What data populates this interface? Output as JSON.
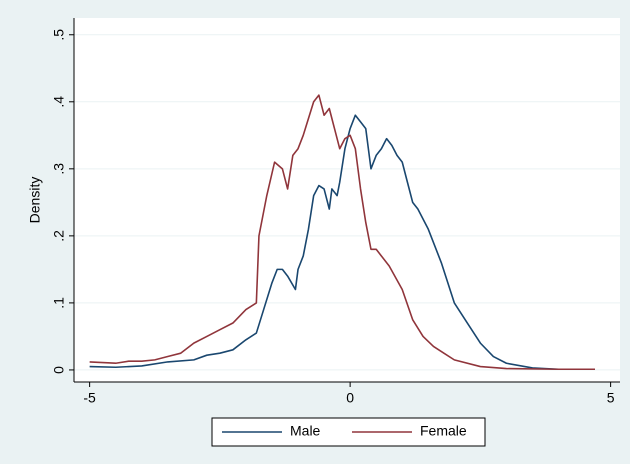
{
  "chart_data": {
    "type": "line",
    "ylabel": "Density",
    "xlim": [
      -5.3,
      5.18
    ],
    "xticks": [
      -5,
      0,
      5
    ],
    "ylim": [
      -0.018,
      0.525
    ],
    "yticks": [
      0,
      {
        "value": 0.1,
        "label": ".1"
      },
      {
        "value": 0.2,
        "label": ".2"
      },
      {
        "value": 0.3,
        "label": ".3"
      },
      {
        "value": 0.4,
        "label": ".4"
      },
      {
        "value": 0.5,
        "label": ".5"
      }
    ],
    "grid": true,
    "legend": "bottom",
    "series": [
      {
        "name": "Male",
        "color": "#1a476f",
        "x": [
          -5,
          -4.5,
          -4,
          -3.5,
          -3,
          -2.75,
          -2.5,
          -2.25,
          -2,
          -1.8,
          -1.7,
          -1.5,
          -1.4,
          -1.3,
          -1.2,
          -1.05,
          -1,
          -0.9,
          -0.8,
          -0.7,
          -0.6,
          -0.5,
          -0.4,
          -0.35,
          -0.25,
          -0.2,
          -0.1,
          0,
          0.1,
          0.2,
          0.3,
          0.4,
          0.5,
          0.6,
          0.7,
          0.8,
          0.9,
          1,
          1.1,
          1.2,
          1.3,
          1.5,
          1.75,
          2,
          2.25,
          2.5,
          2.75,
          3,
          3.5,
          4,
          4.7
        ],
        "values": [
          0.005,
          0.004,
          0.006,
          0.012,
          0.015,
          0.022,
          0.025,
          0.03,
          0.045,
          0.055,
          0.08,
          0.13,
          0.15,
          0.15,
          0.14,
          0.12,
          0.15,
          0.17,
          0.21,
          0.26,
          0.275,
          0.27,
          0.24,
          0.27,
          0.26,
          0.28,
          0.33,
          0.36,
          0.38,
          0.37,
          0.36,
          0.3,
          0.32,
          0.33,
          0.345,
          0.335,
          0.32,
          0.31,
          0.28,
          0.25,
          0.24,
          0.21,
          0.16,
          0.1,
          0.07,
          0.04,
          0.02,
          0.01,
          0.003,
          0.001,
          0.001
        ]
      },
      {
        "name": "Female",
        "color": "#90353b",
        "x": [
          -5,
          -4.5,
          -4.25,
          -4,
          -3.75,
          -3.5,
          -3.25,
          -3,
          -2.75,
          -2.5,
          -2.25,
          -2,
          -1.8,
          -1.75,
          -1.6,
          -1.45,
          -1.3,
          -1.2,
          -1.1,
          -1,
          -0.9,
          -0.7,
          -0.6,
          -0.5,
          -0.4,
          -0.3,
          -0.2,
          -0.1,
          0,
          0.1,
          0.2,
          0.3,
          0.4,
          0.5,
          0.6,
          0.75,
          1,
          1.2,
          1.4,
          1.6,
          1.8,
          2,
          2.5,
          3,
          4,
          4.7
        ],
        "values": [
          0.012,
          0.01,
          0.013,
          0.013,
          0.015,
          0.02,
          0.025,
          0.04,
          0.05,
          0.06,
          0.07,
          0.09,
          0.1,
          0.2,
          0.26,
          0.31,
          0.3,
          0.27,
          0.32,
          0.33,
          0.35,
          0.4,
          0.41,
          0.38,
          0.39,
          0.36,
          0.33,
          0.345,
          0.35,
          0.33,
          0.27,
          0.22,
          0.18,
          0.18,
          0.17,
          0.155,
          0.12,
          0.075,
          0.05,
          0.035,
          0.025,
          0.015,
          0.005,
          0.002,
          0.001,
          0.001
        ]
      }
    ]
  }
}
